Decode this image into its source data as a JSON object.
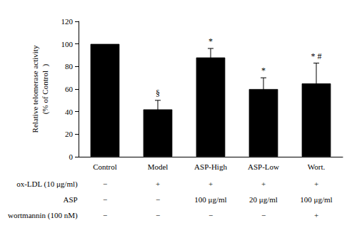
{
  "chart_data": {
    "type": "bar",
    "categories": [
      "Control",
      "Model",
      "ASP-High",
      "ASP-Low",
      "Wort."
    ],
    "values": [
      100,
      42,
      88,
      60,
      65
    ],
    "errors": [
      0,
      8,
      8,
      10,
      18
    ],
    "color": "#000000",
    "ylabel": "Relative telomerase activity\n(% of Control  )",
    "ylim": [
      0,
      120
    ],
    "yticks": [
      0,
      20,
      40,
      60,
      80,
      100,
      120
    ],
    "grid": false,
    "significance": [
      null,
      "§",
      "*",
      "*",
      "* #"
    ],
    "table_rows": [
      [
        "ox-LDL (10 μg/ml)",
        "−",
        "+",
        "+",
        "+",
        "+"
      ],
      [
        "ASP",
        "−",
        "−",
        "100 μg/ml",
        "20 μg/ml",
        "100 μg/ml"
      ],
      [
        "wortmannin (100 nM)",
        "−",
        "−",
        "−",
        "−",
        "+"
      ]
    ]
  }
}
